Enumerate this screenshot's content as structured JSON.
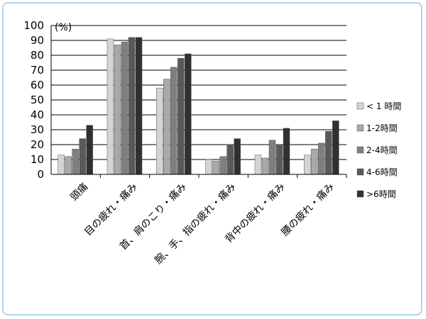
{
  "chart_data": {
    "type": "bar",
    "unit_label": "(%)",
    "ylim": [
      0,
      100
    ],
    "yticks": [
      "0",
      "10",
      "20",
      "30",
      "40",
      "50",
      "60",
      "70",
      "80",
      "90",
      "100"
    ],
    "grid": true,
    "legend_position": "right",
    "categories": [
      "頭痛",
      "目の疲れ・痛み",
      "首、肩のこり・痛み",
      "腕、手、指の疲れ・痛み",
      "背中の疲れ・痛み",
      "腰の疲れ・痛み"
    ],
    "series": [
      {
        "name": "< 1 時間",
        "color": "#d4d4d4",
        "values": [
          13,
          91,
          58,
          10,
          13,
          13
        ]
      },
      {
        "name": "1-2時間",
        "color": "#a9a9a9",
        "values": [
          12,
          87,
          64,
          9,
          11,
          17
        ]
      },
      {
        "name": "2-4時間",
        "color": "#7f7f7f",
        "values": [
          17,
          89,
          72,
          12,
          23,
          21
        ]
      },
      {
        "name": "4-6時間",
        "color": "#595959",
        "values": [
          24,
          92,
          78,
          20,
          20,
          29
        ]
      },
      {
        "name": ">6時間",
        "color": "#303030",
        "values": [
          33,
          92,
          81,
          24,
          31,
          36
        ]
      }
    ]
  }
}
